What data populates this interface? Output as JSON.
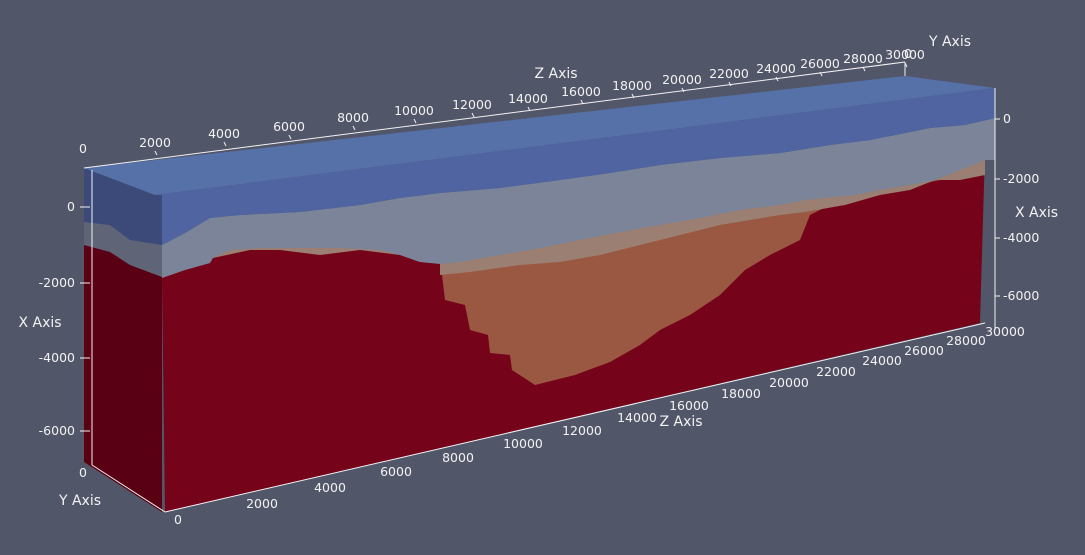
{
  "viewer": {
    "background": "#525669",
    "axes": {
      "z_axis_top": {
        "title": "Z Axis",
        "ticks": [
          "2000",
          "4000",
          "6000",
          "8000",
          "10000",
          "12000",
          "14000",
          "16000",
          "18000",
          "20000",
          "22000",
          "24000",
          "26000",
          "28000",
          "30000"
        ]
      },
      "z_axis_bottom": {
        "title": "Z Axis",
        "ticks": [
          "2000",
          "4000",
          "6000",
          "8000",
          "10000",
          "12000",
          "14000",
          "16000",
          "18000",
          "20000",
          "22000",
          "24000",
          "26000",
          "28000",
          "30000"
        ]
      },
      "x_axis_left": {
        "title": "X Axis",
        "ticks": [
          "0",
          "-2000",
          "-4000",
          "-6000"
        ]
      },
      "x_axis_right": {
        "title": "X Axis",
        "ticks": [
          "0",
          "-2000",
          "-4000",
          "-6000"
        ]
      },
      "y_axis_left": {
        "title": "Y Axis",
        "ticks": [
          "0",
          "0"
        ]
      },
      "y_axis_top": {
        "title": "Y Axis",
        "ticks": [
          "0"
        ]
      },
      "origin_labels": {
        "top_left": "0",
        "bottom_left": "0"
      }
    },
    "layers": [
      {
        "name": "top layer",
        "color": "#5569a3"
      },
      {
        "name": "grey layer",
        "color": "#7d8699"
      },
      {
        "name": "peach layer",
        "color": "#9a8073"
      },
      {
        "name": "basin layer",
        "color": "#9a5842"
      },
      {
        "name": "basement layer",
        "color": "#75031a"
      }
    ],
    "colors": {
      "top_face": "#5670a8",
      "left_face_top": "#3b4a78",
      "left_face_grey": "#5f6577",
      "left_face_basement": "#5a0014",
      "front_top": "#4f64a0",
      "front_grey": "#7b8498",
      "front_peach": "#9a7f72",
      "front_basin": "#9a5842",
      "front_basement": "#75031a"
    }
  }
}
